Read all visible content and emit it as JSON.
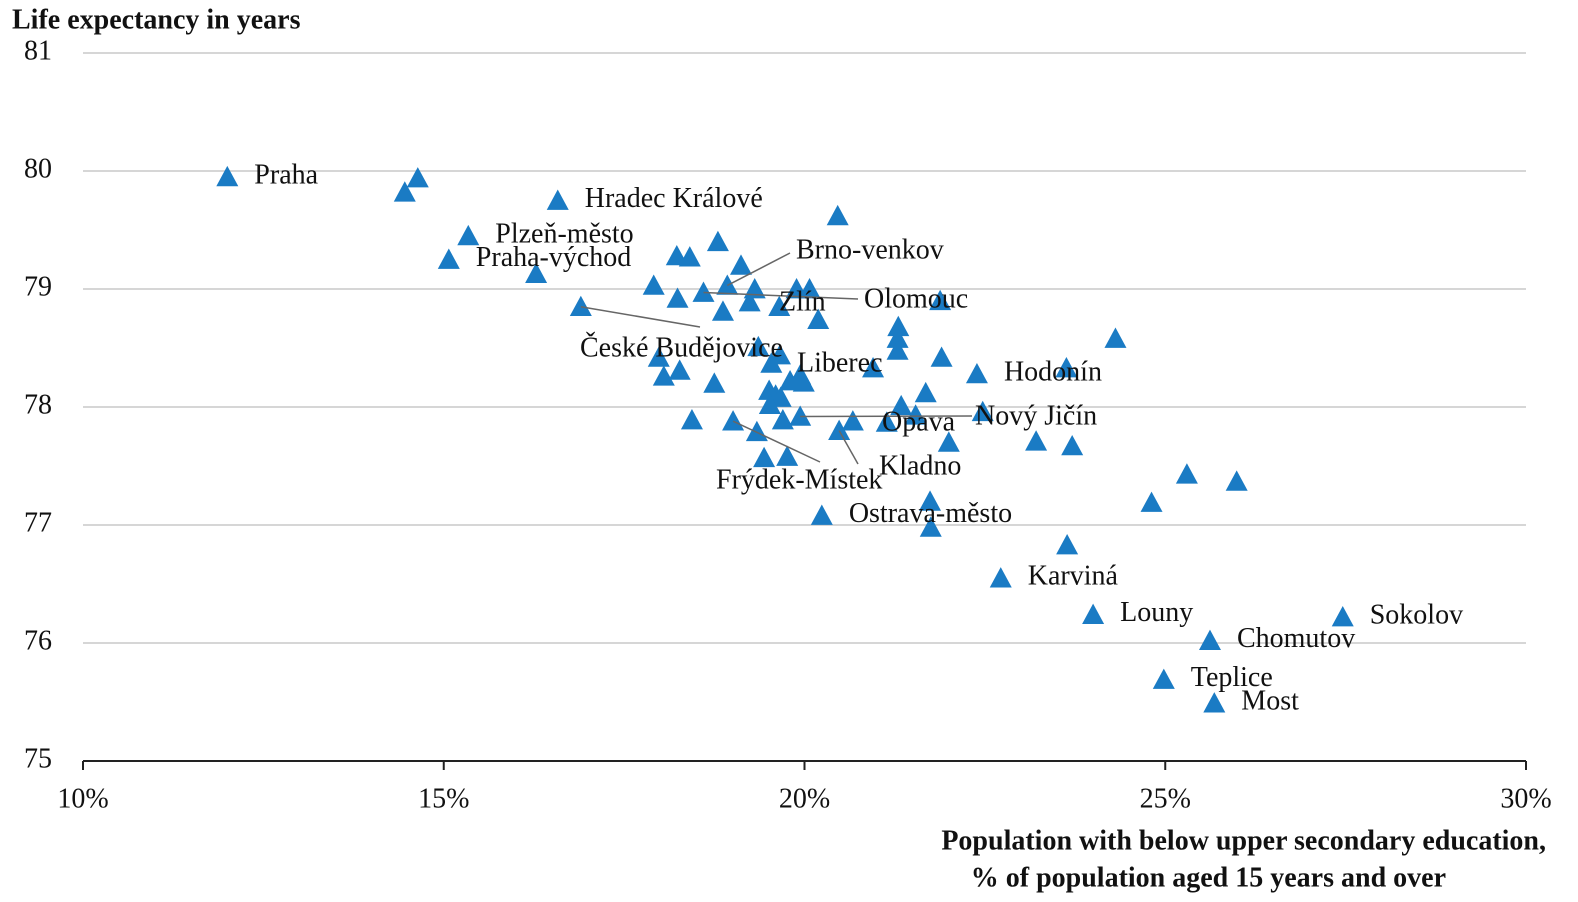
{
  "chart_data": {
    "type": "scatter",
    "title": "Life expectancy in years",
    "x_label": [
      "Population with below upper secondary education,",
      "% of population aged 15 years and over"
    ],
    "color": "#1a7bc4",
    "xlim": [
      10,
      30
    ],
    "ylim": [
      75,
      81
    ],
    "xticks": [
      {
        "value": 10,
        "label": "10%"
      },
      {
        "value": 15,
        "label": "15%"
      },
      {
        "value": 20,
        "label": "20%"
      },
      {
        "value": 25,
        "label": "25%"
      },
      {
        "value": 30,
        "label": "30%"
      }
    ],
    "yticks": [
      75,
      76,
      77,
      78,
      79,
      80,
      81
    ],
    "grid": true,
    "x": [
      12.0,
      14.64,
      14.46,
      16.58,
      20.46,
      15.34,
      15.07,
      16.28,
      18.23,
      18.41,
      18.8,
      19.12,
      18.93,
      17.91,
      18.24,
      18.6,
      19.31,
      19.24,
      18.87,
      19.89,
      20.07,
      19.65,
      20.19,
      21.88,
      16.9,
      21.3,
      21.29,
      21.29,
      21.9,
      20.95,
      19.36,
      19.54,
      19.66,
      17.98,
      18.05,
      18.27,
      18.75,
      19.94,
      19.8,
      19.99,
      19.6,
      19.51,
      19.67,
      21.68,
      22.39,
      23.63,
      24.31,
      19.52,
      21.34,
      21.54,
      22.47,
      19.94,
      19.7,
      20.67,
      21.14,
      18.44,
      19.01,
      20.48,
      19.34,
      22.0,
      23.21,
      23.71,
      19.44,
      19.76,
      25.3,
      25.99,
      21.74,
      24.81,
      20.24,
      21.75,
      23.64,
      22.72,
      24.0,
      27.46,
      25.62,
      24.98,
      25.68
    ],
    "values": [
      79.95,
      79.94,
      79.82,
      79.75,
      79.62,
      79.45,
      79.25,
      79.13,
      79.28,
      79.27,
      79.4,
      79.2,
      79.03,
      79.03,
      78.92,
      78.97,
      79.0,
      78.89,
      78.81,
      79.0,
      79.0,
      78.85,
      78.74,
      78.9,
      78.85,
      78.68,
      78.58,
      78.48,
      78.42,
      78.33,
      78.51,
      78.37,
      78.44,
      78.42,
      78.26,
      78.31,
      78.2,
      78.27,
      78.22,
      78.21,
      78.1,
      78.14,
      78.08,
      78.12,
      78.28,
      78.33,
      78.58,
      78.02,
      78.01,
      77.93,
      77.96,
      77.92,
      77.89,
      77.88,
      77.87,
      77.89,
      77.88,
      77.8,
      77.79,
      77.7,
      77.71,
      77.67,
      77.57,
      77.58,
      77.43,
      77.37,
      77.2,
      77.19,
      77.08,
      76.98,
      76.83,
      76.55,
      76.24,
      76.22,
      76.02,
      75.69,
      75.49
    ],
    "point_labels": [
      "Praha",
      null,
      null,
      "Hradec Králové",
      null,
      "Plzeň-město",
      "Praha-východ",
      null,
      null,
      null,
      null,
      null,
      "Brno-venkov",
      null,
      null,
      "Olomouc",
      null,
      null,
      null,
      null,
      null,
      "Zlín",
      null,
      null,
      "České Budějovice",
      null,
      null,
      null,
      null,
      null,
      null,
      null,
      null,
      null,
      null,
      null,
      null,
      "Liberec",
      null,
      null,
      null,
      null,
      null,
      null,
      "Hodonín",
      null,
      null,
      null,
      null,
      null,
      null,
      "Nový Jičín",
      null,
      null,
      "Opava",
      null,
      "Frýdek-Místek",
      "Kladno",
      null,
      null,
      null,
      null,
      null,
      null,
      null,
      null,
      null,
      null,
      "Ostrava-město",
      null,
      null,
      "Karviná",
      "Louny",
      "Sokolov",
      "Chomutov",
      "Teplice",
      "Most"
    ]
  }
}
